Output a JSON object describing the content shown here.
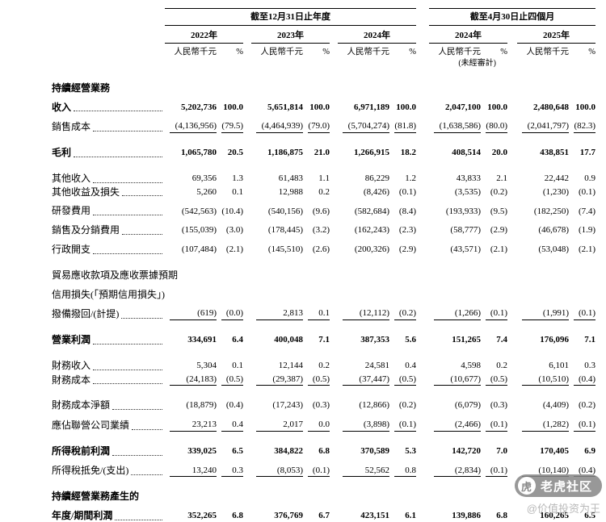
{
  "table": {
    "col_groups": [
      {
        "title": "截至12月31日止年度",
        "pairs": 3
      },
      {
        "title": "截至4月30日止四個月",
        "pairs": 2
      }
    ],
    "columns": [
      {
        "year": "2022年",
        "unit": "人民幣千元",
        "pct_symbol": "%",
        "note": ""
      },
      {
        "year": "2023年",
        "unit": "人民幣千元",
        "pct_symbol": "%",
        "note": ""
      },
      {
        "year": "2024年",
        "unit": "人民幣千元",
        "pct_symbol": "%",
        "note": ""
      },
      {
        "year": "2024年",
        "unit": "人民幣千元",
        "pct_symbol": "%",
        "note": "(未經審計)"
      },
      {
        "year": "2025年",
        "unit": "人民幣千元",
        "pct_symbol": "%",
        "note": ""
      }
    ],
    "rows": [
      {
        "lines": [
          "持續經營業務"
        ],
        "bold": true,
        "leaders": false,
        "underline": false,
        "spacing": "gap",
        "values": null
      },
      {
        "lines": [
          "收入"
        ],
        "bold": true,
        "leaders": true,
        "underline": false,
        "spacing": "",
        "values": [
          "5,202,736",
          "100.0",
          "5,651,814",
          "100.0",
          "6,971,189",
          "100.0",
          "2,047,100",
          "100.0",
          "2,480,648",
          "100.0"
        ]
      },
      {
        "lines": [
          "銷售成本"
        ],
        "bold": false,
        "leaders": true,
        "underline": true,
        "spacing": "",
        "values": [
          "(4,136,956)",
          "(79.5)",
          "(4,464,939)",
          "(79.0)",
          "(5,704,274)",
          "(81.8)",
          "(1,638,586)",
          "(80.0)",
          "(2,041,797)",
          "(82.3)"
        ]
      },
      {
        "lines": [
          "毛利"
        ],
        "bold": true,
        "leaders": true,
        "underline": false,
        "spacing": "gap",
        "values": [
          "1,065,780",
          "20.5",
          "1,186,875",
          "21.0",
          "1,266,915",
          "18.2",
          "408,514",
          "20.0",
          "438,851",
          "17.7"
        ]
      },
      {
        "lines": [
          "其他收入"
        ],
        "bold": false,
        "leaders": true,
        "underline": false,
        "spacing": "gap",
        "values": [
          "69,356",
          "1.3",
          "61,483",
          "1.1",
          "86,229",
          "1.2",
          "43,833",
          "2.1",
          "22,442",
          "0.9"
        ]
      },
      {
        "lines": [
          "其他收益及損失"
        ],
        "bold": false,
        "leaders": true,
        "underline": false,
        "spacing": "tight",
        "values": [
          "5,260",
          "0.1",
          "12,988",
          "0.2",
          "(8,426)",
          "(0.1)",
          "(3,535)",
          "(0.2)",
          "(1,230)",
          "(0.1)"
        ]
      },
      {
        "lines": [
          "研發費用"
        ],
        "bold": false,
        "leaders": true,
        "underline": false,
        "spacing": "",
        "values": [
          "(542,563)",
          "(10.4)",
          "(540,156)",
          "(9.6)",
          "(582,684)",
          "(8.4)",
          "(193,933)",
          "(9.5)",
          "(182,250)",
          "(7.4)"
        ]
      },
      {
        "lines": [
          "銷售及分銷費用"
        ],
        "bold": false,
        "leaders": true,
        "underline": false,
        "spacing": "",
        "values": [
          "(155,039)",
          "(3.0)",
          "(178,445)",
          "(3.2)",
          "(162,243)",
          "(2.3)",
          "(58,777)",
          "(2.9)",
          "(46,678)",
          "(1.9)"
        ]
      },
      {
        "lines": [
          "行政開支"
        ],
        "bold": false,
        "leaders": true,
        "underline": false,
        "spacing": "",
        "values": [
          "(107,484)",
          "(2.1)",
          "(145,510)",
          "(2.6)",
          "(200,326)",
          "(2.9)",
          "(43,571)",
          "(2.1)",
          "(53,048)",
          "(2.1)"
        ]
      },
      {
        "lines": [
          "貿易應收款項及應收票據預期",
          "信用損失(「預期信用損失」)",
          "撥備撥回/(計提)"
        ],
        "bold": false,
        "leaders": true,
        "underline": true,
        "spacing": "gap",
        "values": [
          "(619)",
          "(0.0)",
          "2,813",
          "0.1",
          "(12,112)",
          "(0.2)",
          "(1,266)",
          "(0.1)",
          "(1,991)",
          "(0.1)"
        ]
      },
      {
        "lines": [
          "營業利潤"
        ],
        "bold": true,
        "leaders": true,
        "underline": false,
        "spacing": "gap",
        "values": [
          "334,691",
          "6.4",
          "400,048",
          "7.1",
          "387,353",
          "5.6",
          "151,265",
          "7.4",
          "176,096",
          "7.1"
        ]
      },
      {
        "lines": [
          "財務收入"
        ],
        "bold": false,
        "leaders": true,
        "underline": false,
        "spacing": "gap",
        "values": [
          "5,304",
          "0.1",
          "12,144",
          "0.2",
          "24,581",
          "0.4",
          "4,598",
          "0.2",
          "6,101",
          "0.3"
        ]
      },
      {
        "lines": [
          "財務成本"
        ],
        "bold": false,
        "leaders": true,
        "underline": true,
        "spacing": "tight",
        "values": [
          "(24,183)",
          "(0.5)",
          "(29,387)",
          "(0.5)",
          "(37,447)",
          "(0.5)",
          "(10,677)",
          "(0.5)",
          "(10,510)",
          "(0.4)"
        ]
      },
      {
        "lines": [
          "財務成本淨額"
        ],
        "bold": false,
        "leaders": true,
        "underline": false,
        "spacing": "gap",
        "values": [
          "(18,879)",
          "(0.4)",
          "(17,243)",
          "(0.3)",
          "(12,866)",
          "(0.2)",
          "(6,079)",
          "(0.3)",
          "(4,409)",
          "(0.2)"
        ]
      },
      {
        "lines": [
          "應佔聯營公司業績"
        ],
        "bold": false,
        "leaders": true,
        "underline": true,
        "spacing": "",
        "values": [
          "23,213",
          "0.4",
          "2,017",
          "0.0",
          "(3,898)",
          "(0.1)",
          "(2,466)",
          "(0.1)",
          "(1,282)",
          "(0.1)"
        ]
      },
      {
        "lines": [
          "所得稅前利潤"
        ],
        "bold": true,
        "leaders": true,
        "underline": false,
        "spacing": "gap",
        "values": [
          "339,025",
          "6.5",
          "384,822",
          "6.8",
          "370,589",
          "5.3",
          "142,720",
          "7.0",
          "170,405",
          "6.9"
        ]
      },
      {
        "lines": [
          "所得稅抵免/(支出)"
        ],
        "bold": false,
        "leaders": true,
        "underline": true,
        "spacing": "",
        "values": [
          "13,240",
          "0.3",
          "(8,053)",
          "(0.1)",
          "52,562",
          "0.8",
          "(2,834)",
          "(0.1)",
          "(10,140)",
          "(0.4)"
        ]
      },
      {
        "lines": [
          "持續經營業務產生的",
          "年度/期間利潤"
        ],
        "bold": true,
        "leaders": true,
        "underline": false,
        "spacing": "gap",
        "values": [
          "352,265",
          "6.8",
          "376,769",
          "6.7",
          "423,151",
          "6.1",
          "139,886",
          "6.8",
          "160,265",
          "6.5"
        ]
      }
    ]
  },
  "watermark": {
    "brand": "老虎社区",
    "handle": "@价值投资为王",
    "logo_glyph": "虎",
    "pill_color": "#868686",
    "handle_color": "#b9b9b9"
  }
}
